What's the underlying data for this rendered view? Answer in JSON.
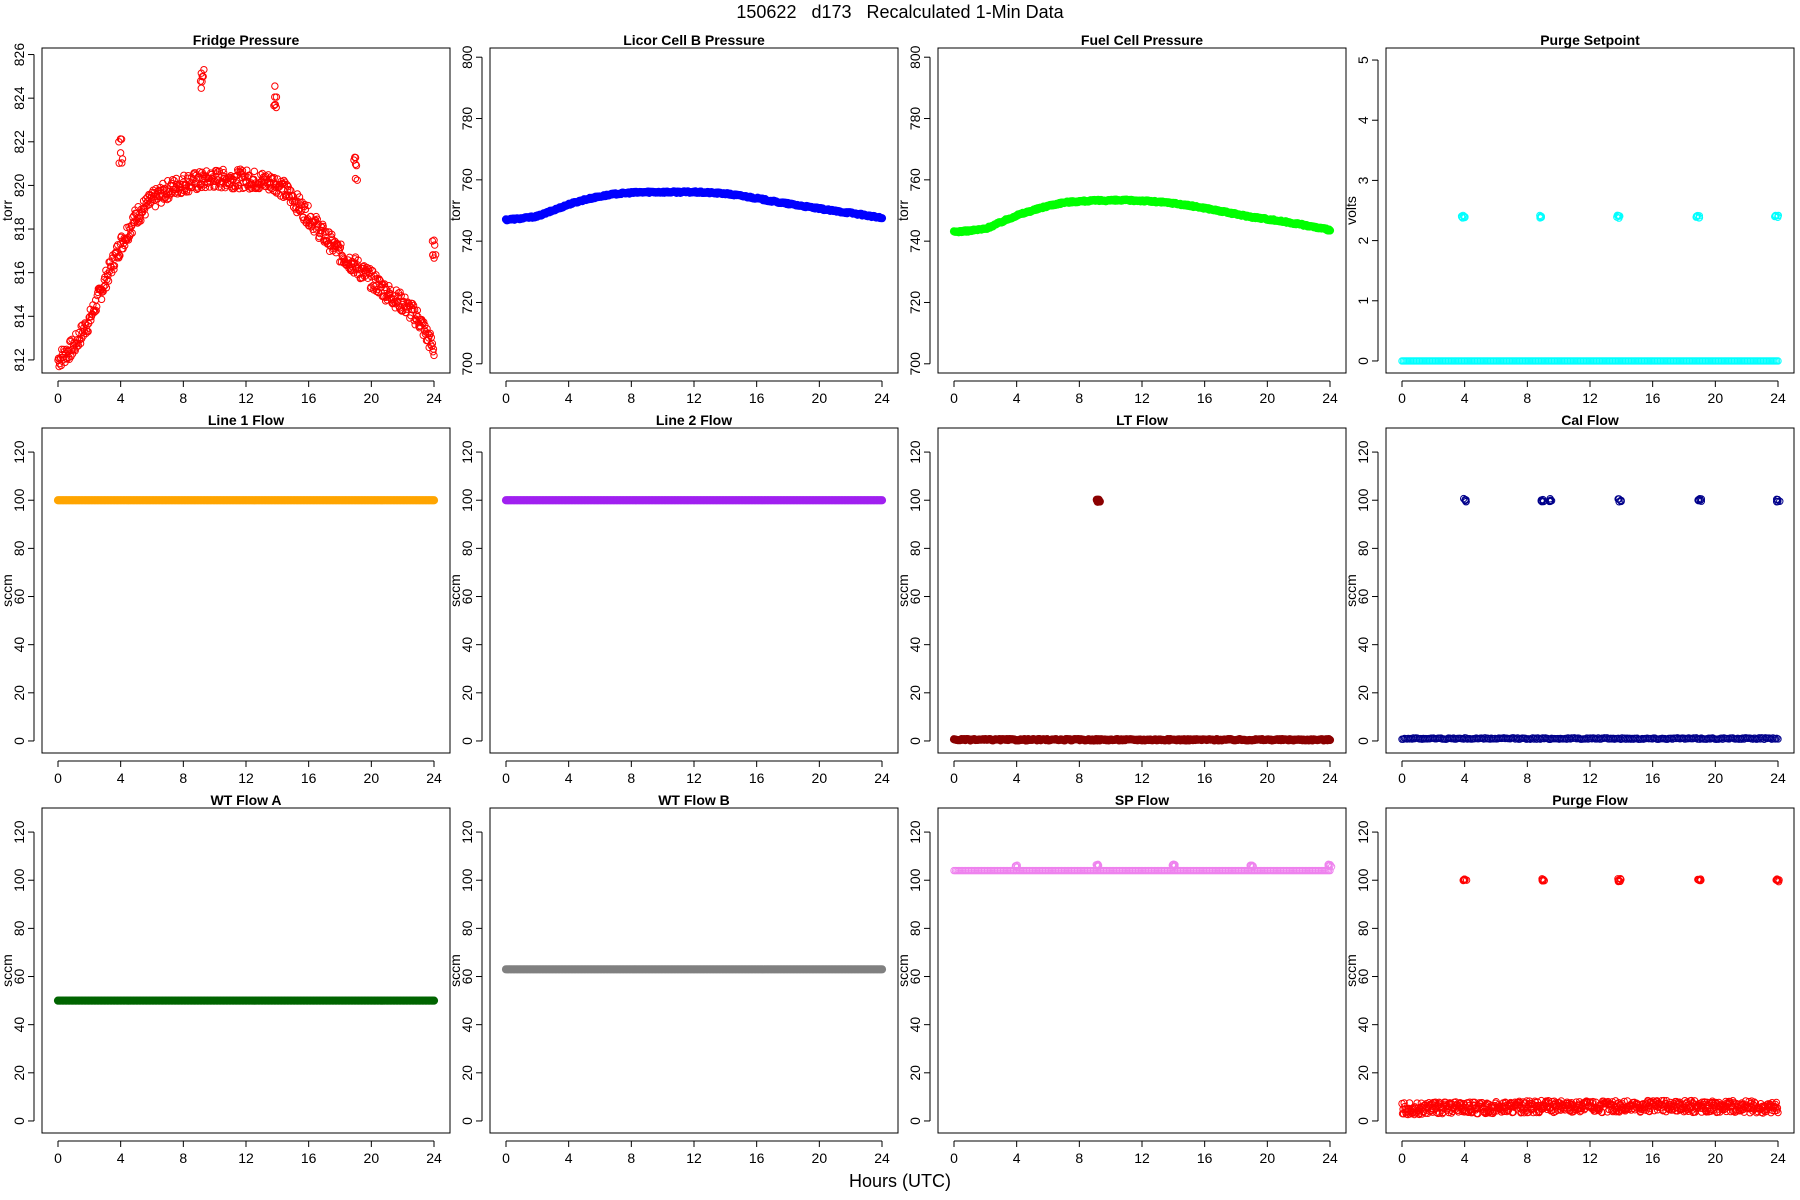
{
  "page": {
    "title": "150622   d173   Recalculated 1-Min Data",
    "xlabel": "Hours (UTC)"
  },
  "chart_data": [
    {
      "type": "scatter",
      "title": "Fridge Pressure",
      "ylabel": "torr",
      "color": "#ff0000",
      "marker": "open-circle",
      "xlim": [
        0,
        24
      ],
      "ylim": [
        811.4,
        826.3
      ],
      "xticks": [
        0,
        4,
        8,
        12,
        16,
        20,
        24
      ],
      "yticks": [
        812,
        814,
        816,
        818,
        820,
        822,
        824,
        826
      ],
      "series": [
        {
          "x": [
            0,
            1,
            2,
            3,
            4,
            5,
            6,
            7,
            8,
            9,
            10,
            11,
            12,
            13,
            14,
            15,
            16,
            17,
            18,
            19,
            20,
            21,
            22,
            23,
            24
          ],
          "y": [
            812.0,
            812.6,
            813.8,
            815.6,
            817.3,
            818.6,
            819.3,
            819.8,
            820.1,
            820.2,
            820.3,
            820.3,
            820.3,
            820.2,
            820.1,
            819.4,
            818.6,
            817.7,
            816.9,
            816.3,
            815.7,
            815.1,
            814.6,
            813.9,
            812.5
          ]
        }
      ],
      "outliers": [
        {
          "x": 4.0,
          "y": 821.6
        },
        {
          "x": 9.2,
          "y": 825.0
        },
        {
          "x": 13.9,
          "y": 824.0
        },
        {
          "x": 19.0,
          "y": 820.7
        },
        {
          "x": 24.0,
          "y": 817.0
        }
      ]
    },
    {
      "type": "scatter",
      "title": "Licor Cell B Pressure",
      "ylabel": "torr",
      "color": "#0000ff",
      "marker": "filled-circle",
      "xlim": [
        0,
        24
      ],
      "ylim": [
        697,
        803
      ],
      "xticks": [
        0,
        4,
        8,
        12,
        16,
        20,
        24
      ],
      "yticks": [
        700,
        720,
        740,
        760,
        780,
        800
      ],
      "series": [
        {
          "x": [
            0,
            1,
            2,
            3,
            4,
            5,
            6,
            7,
            8,
            9,
            10,
            11,
            12,
            13,
            14,
            15,
            16,
            17,
            18,
            19,
            20,
            21,
            22,
            23,
            24
          ],
          "y": [
            747.0,
            747.4,
            748.1,
            750.0,
            752.0,
            753.5,
            754.6,
            755.4,
            755.8,
            756.0,
            756.0,
            756.0,
            756.0,
            755.8,
            755.5,
            754.8,
            754.0,
            753.0,
            752.2,
            751.4,
            750.6,
            749.8,
            749.2,
            748.4,
            747.5
          ]
        }
      ]
    },
    {
      "type": "scatter",
      "title": "Fuel Cell Pressure",
      "ylabel": "torr",
      "color": "#00ff00",
      "marker": "filled-circle",
      "xlim": [
        0,
        24
      ],
      "ylim": [
        697,
        803
      ],
      "xticks": [
        0,
        4,
        8,
        12,
        16,
        20,
        24
      ],
      "yticks": [
        700,
        720,
        740,
        760,
        780,
        800
      ],
      "series": [
        {
          "x": [
            0,
            1,
            2,
            3,
            4,
            5,
            6,
            7,
            8,
            9,
            10,
            11,
            12,
            13,
            14,
            15,
            16,
            17,
            18,
            19,
            20,
            21,
            22,
            23,
            24
          ],
          "y": [
            743.0,
            743.4,
            744.0,
            746.2,
            748.4,
            750.0,
            751.5,
            752.6,
            753.0,
            753.2,
            753.3,
            753.3,
            753.2,
            752.8,
            752.4,
            751.6,
            750.8,
            749.8,
            748.8,
            747.9,
            747.2,
            746.4,
            745.6,
            744.6,
            743.6
          ]
        }
      ]
    },
    {
      "type": "scatter",
      "title": "Purge Setpoint",
      "ylabel": "volts",
      "color": "#00ffff",
      "marker": "open-circle",
      "xlim": [
        0,
        24
      ],
      "ylim": [
        -0.2,
        5.2
      ],
      "xticks": [
        0,
        4,
        8,
        12,
        16,
        20,
        24
      ],
      "yticks": [
        0,
        1,
        2,
        3,
        4,
        5
      ],
      "series": [
        {
          "x": [
            0,
            24
          ],
          "y": [
            0,
            0
          ]
        }
      ],
      "outliers": [
        {
          "x": 3.9,
          "y": 2.4
        },
        {
          "x": 8.9,
          "y": 2.4
        },
        {
          "x": 13.8,
          "y": 2.4
        },
        {
          "x": 18.9,
          "y": 2.4
        },
        {
          "x": 23.9,
          "y": 2.4
        }
      ]
    },
    {
      "type": "scatter",
      "title": "Line 1 Flow",
      "ylabel": "sccm",
      "color": "#ffa500",
      "marker": "filled-circle",
      "xlim": [
        0,
        24
      ],
      "ylim": [
        -5,
        130
      ],
      "xticks": [
        0,
        4,
        8,
        12,
        16,
        20,
        24
      ],
      "yticks": [
        0,
        20,
        40,
        60,
        80,
        100,
        120
      ],
      "series": [
        {
          "x": [
            0,
            24
          ],
          "y": [
            100,
            100
          ]
        }
      ]
    },
    {
      "type": "scatter",
      "title": "Line 2 Flow",
      "ylabel": "sccm",
      "color": "#a020f0",
      "marker": "filled-circle",
      "xlim": [
        0,
        24
      ],
      "ylim": [
        -5,
        130
      ],
      "xticks": [
        0,
        4,
        8,
        12,
        16,
        20,
        24
      ],
      "yticks": [
        0,
        20,
        40,
        60,
        80,
        100,
        120
      ],
      "series": [
        {
          "x": [
            0,
            24
          ],
          "y": [
            100,
            100
          ]
        }
      ]
    },
    {
      "type": "scatter",
      "title": "LT Flow",
      "ylabel": "sccm",
      "color": "#8b0000",
      "marker": "filled-circle",
      "xlim": [
        0,
        24
      ],
      "ylim": [
        -5,
        130
      ],
      "xticks": [
        0,
        4,
        8,
        12,
        16,
        20,
        24
      ],
      "yticks": [
        0,
        20,
        40,
        60,
        80,
        100,
        120
      ],
      "series": [
        {
          "x": [
            0,
            24
          ],
          "y": [
            0.5,
            0.5
          ]
        }
      ],
      "outliers": [
        {
          "x": 9.2,
          "y": 100
        }
      ]
    },
    {
      "type": "scatter",
      "title": "Cal Flow",
      "ylabel": "sccm",
      "color": "#00008b",
      "marker": "open-circle",
      "xlim": [
        0,
        24
      ],
      "ylim": [
        -5,
        130
      ],
      "xticks": [
        0,
        4,
        8,
        12,
        16,
        20,
        24
      ],
      "yticks": [
        0,
        20,
        40,
        60,
        80,
        100,
        120
      ],
      "series": [
        {
          "x": [
            0,
            24
          ],
          "y": [
            1,
            1
          ]
        }
      ],
      "outliers": [
        {
          "x": 4.0,
          "y": 100
        },
        {
          "x": 9.0,
          "y": 100
        },
        {
          "x": 9.5,
          "y": 100
        },
        {
          "x": 13.9,
          "y": 100
        },
        {
          "x": 19.0,
          "y": 100
        },
        {
          "x": 24.0,
          "y": 100
        }
      ]
    },
    {
      "type": "scatter",
      "title": "WT Flow A",
      "ylabel": "sccm",
      "color": "#006400",
      "marker": "filled-circle",
      "xlim": [
        0,
        24
      ],
      "ylim": [
        -5,
        130
      ],
      "xticks": [
        0,
        4,
        8,
        12,
        16,
        20,
        24
      ],
      "yticks": [
        0,
        20,
        40,
        60,
        80,
        100,
        120
      ],
      "series": [
        {
          "x": [
            0,
            24
          ],
          "y": [
            50,
            50
          ]
        }
      ]
    },
    {
      "type": "scatter",
      "title": "WT Flow B",
      "ylabel": "sccm",
      "color": "#808080",
      "marker": "filled-circle",
      "xlim": [
        0,
        24
      ],
      "ylim": [
        -5,
        130
      ],
      "xticks": [
        0,
        4,
        8,
        12,
        16,
        20,
        24
      ],
      "yticks": [
        0,
        20,
        40,
        60,
        80,
        100,
        120
      ],
      "series": [
        {
          "x": [
            0,
            24
          ],
          "y": [
            63,
            63
          ]
        }
      ]
    },
    {
      "type": "scatter",
      "title": "SP Flow",
      "ylabel": "sccm",
      "color": "#ee82ee",
      "marker": "open-circle",
      "xlim": [
        0,
        24
      ],
      "ylim": [
        -5,
        130
      ],
      "xticks": [
        0,
        4,
        8,
        12,
        16,
        20,
        24
      ],
      "yticks": [
        0,
        20,
        40,
        60,
        80,
        100,
        120
      ],
      "series": [
        {
          "x": [
            0,
            24
          ],
          "y": [
            104,
            104
          ]
        }
      ],
      "outliers": [
        {
          "x": 4.0,
          "y": 106
        },
        {
          "x": 9.2,
          "y": 106
        },
        {
          "x": 14.0,
          "y": 106
        },
        {
          "x": 19.0,
          "y": 106
        },
        {
          "x": 24.0,
          "y": 106
        }
      ]
    },
    {
      "type": "scatter",
      "title": "Purge Flow",
      "ylabel": "sccm",
      "color": "#ff0000",
      "marker": "open-circle",
      "xlim": [
        0,
        24
      ],
      "ylim": [
        -5,
        130
      ],
      "xticks": [
        0,
        4,
        8,
        12,
        16,
        20,
        24
      ],
      "yticks": [
        0,
        20,
        40,
        60,
        80,
        100,
        120
      ],
      "series": [
        {
          "x": [
            0,
            3,
            6,
            9,
            12,
            15,
            18,
            21,
            24
          ],
          "y": [
            5,
            5.5,
            5.5,
            6,
            6,
            6,
            6,
            6,
            5.5
          ]
        }
      ],
      "outliers": [
        {
          "x": 4.0,
          "y": 100
        },
        {
          "x": 9.0,
          "y": 100
        },
        {
          "x": 13.9,
          "y": 100
        },
        {
          "x": 19.0,
          "y": 100
        },
        {
          "x": 24.0,
          "y": 100
        }
      ]
    }
  ]
}
